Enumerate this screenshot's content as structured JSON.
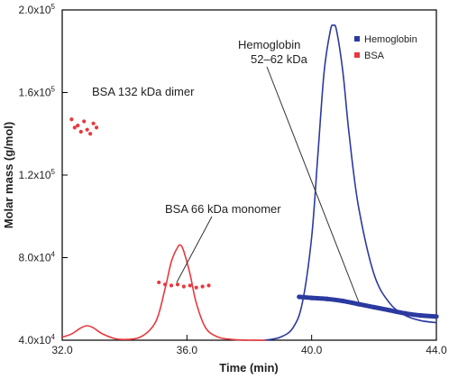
{
  "chart_data": {
    "type": "line",
    "title": "",
    "xlabel": "Time (min)",
    "ylabel": "Molar mass (g/mol)",
    "xlim": [
      32.0,
      44.0
    ],
    "ylim": [
      40000,
      200000
    ],
    "x_ticks": [
      32.0,
      36.0,
      40.0,
      44.0
    ],
    "x_tick_labels": [
      "32.0",
      "36.0",
      "40.0",
      "44.0"
    ],
    "y_ticks": [
      40000,
      80000,
      120000,
      160000,
      200000
    ],
    "y_tick_mantissas": [
      "4.0x10",
      "8.0x10",
      "1.2x10",
      "1.6x10",
      "2.0x10"
    ],
    "y_tick_exponents": [
      "4",
      "4",
      "5",
      "5",
      "5"
    ],
    "grid": false,
    "legend_position": "top-right",
    "colors": {
      "hemoglobin": "#2b3aa0",
      "bsa": "#e8383d"
    },
    "series": [
      {
        "name": "Hemoglobin",
        "kind": "molar_mass_points",
        "color": "#2b3aa0",
        "x": [
          39.6,
          40.0,
          40.5,
          41.0,
          41.5,
          42.0,
          42.5,
          43.0,
          43.5,
          44.0
        ],
        "y": [
          61000,
          60500,
          60000,
          59000,
          57500,
          56000,
          54500,
          53000,
          52000,
          51500
        ]
      },
      {
        "name": "BSA",
        "kind": "molar_mass_points",
        "color": "#e8383d",
        "x": [
          32.3,
          32.4,
          32.5,
          32.6,
          32.7,
          32.8,
          32.9,
          33.0,
          33.1,
          35.1,
          35.3,
          35.5,
          35.7,
          35.9,
          36.1,
          36.3,
          36.5,
          36.7
        ],
        "y": [
          147000,
          143000,
          144000,
          141000,
          146000,
          142000,
          140000,
          145000,
          143000,
          68000,
          67000,
          66500,
          67000,
          66000,
          66500,
          65500,
          66000,
          66500
        ]
      }
    ],
    "signal_traces": [
      {
        "name": "Hemoglobin",
        "kind": "detector_signal",
        "color": "#2b3aa0",
        "x": [
          38.5,
          39.0,
          39.4,
          39.7,
          40.0,
          40.2,
          40.4,
          40.6,
          40.7,
          40.8,
          41.0,
          41.2,
          41.5,
          42.0,
          42.5,
          43.0,
          43.5,
          44.0
        ],
        "y": [
          40000,
          41500,
          46000,
          58000,
          90000,
          130000,
          170000,
          190000,
          192500,
          190000,
          170000,
          140000,
          105000,
          72000,
          58000,
          52000,
          49500,
          48500
        ]
      },
      {
        "name": "BSA",
        "kind": "detector_signal",
        "color": "#e8383d",
        "x": [
          32.0,
          32.3,
          32.6,
          32.8,
          33.0,
          33.3,
          33.8,
          34.5,
          35.0,
          35.3,
          35.5,
          35.7,
          35.8,
          35.9,
          36.1,
          36.3,
          36.6,
          37.0,
          37.5,
          38.0,
          38.5
        ],
        "y": [
          41500,
          43000,
          46000,
          47000,
          46000,
          43000,
          40500,
          41500,
          49000,
          65000,
          78000,
          85000,
          86000,
          83000,
          72000,
          58000,
          46000,
          41500,
          40300,
          40000,
          40000
        ]
      }
    ],
    "annotations": [
      {
        "lines": [
          "BSA 132 kDa dimer"
        ]
      },
      {
        "lines": [
          "BSA 66 kDa monomer"
        ]
      },
      {
        "lines": [
          "Hemoglobin",
          "52–62 kDa"
        ]
      }
    ]
  }
}
